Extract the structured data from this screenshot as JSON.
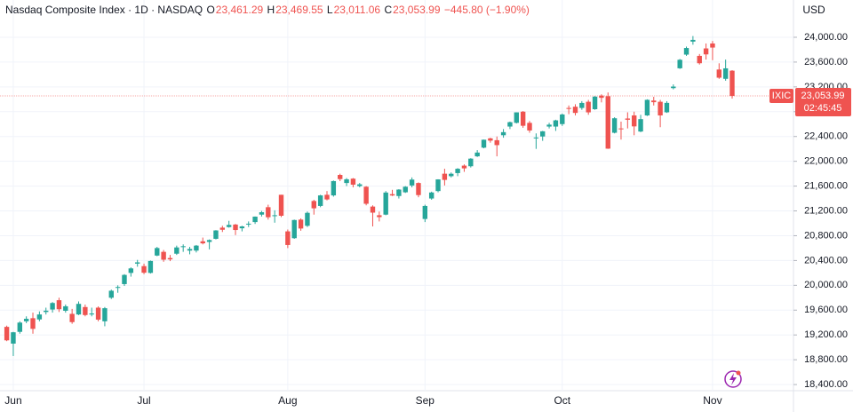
{
  "chart_data": {
    "type": "candlestick",
    "legend": {
      "symbol": "Nasdaq Composite Index · 1D · NASDAQ",
      "open_label": "O",
      "open": "23,461.29",
      "high_label": "H",
      "high": "23,469.55",
      "low_label": "L",
      "low": "23,011.06",
      "close_label": "C",
      "close": "23,053.99",
      "change": "−445.80 (−1.90%)"
    },
    "currency": "USD",
    "price_tag": {
      "symbol": "IXIC",
      "price": {
        "value": 23053.99,
        "label": "23,053.99"
      },
      "countdown": "02:45:45"
    },
    "up_color": "#26a69a",
    "down_color": "#ef5350",
    "ylim": [
      18301,
      24601
    ],
    "yticks": [
      {
        "value": 18400,
        "label": "18,400.00"
      },
      {
        "value": 18800,
        "label": "18,800.00"
      },
      {
        "value": 19200,
        "label": "19,200.00"
      },
      {
        "value": 19600,
        "label": "19,600.00"
      },
      {
        "value": 20000,
        "label": "20,000.00"
      },
      {
        "value": 20400,
        "label": "20,400.00"
      },
      {
        "value": 20800,
        "label": "20,800.00"
      },
      {
        "value": 21200,
        "label": "21,200.00"
      },
      {
        "value": 21600,
        "label": "21,600.00"
      },
      {
        "value": 22000,
        "label": "22,000.00"
      },
      {
        "value": 22400,
        "label": "22,400.00"
      },
      {
        "value": 22800,
        "label": "22,800.00"
      },
      {
        "value": 23200,
        "label": "23,200.00"
      },
      {
        "value": 23600,
        "label": "23,600.00"
      },
      {
        "value": 24000,
        "label": "24,000.00"
      }
    ],
    "grid": true,
    "categories": [
      null,
      "Jun",
      null,
      null,
      null,
      null,
      null,
      null,
      null,
      null,
      null,
      null,
      null,
      null,
      null,
      null,
      null,
      null,
      null,
      null,
      null,
      "Jul",
      null,
      null,
      null,
      null,
      null,
      null,
      null,
      null,
      null,
      null,
      null,
      null,
      null,
      null,
      null,
      null,
      null,
      null,
      null,
      null,
      null,
      "Aug",
      null,
      null,
      null,
      null,
      null,
      null,
      null,
      null,
      null,
      null,
      null,
      null,
      null,
      null,
      null,
      null,
      null,
      null,
      null,
      null,
      "Sep",
      null,
      null,
      null,
      null,
      null,
      null,
      null,
      null,
      null,
      null,
      null,
      null,
      null,
      null,
      null,
      null,
      null,
      null,
      null,
      null,
      "Oct",
      null,
      null,
      null,
      null,
      null,
      null,
      null,
      null,
      null,
      null,
      null,
      null,
      null,
      null,
      null,
      null,
      null,
      null,
      null,
      null,
      null,
      null,
      "Nov",
      null,
      null,
      null
    ],
    "candles": [
      [
        19330,
        19350,
        19100,
        19113
      ],
      [
        19060,
        19250,
        18860,
        19243
      ],
      [
        19250,
        19420,
        19220,
        19399
      ],
      [
        19420,
        19500,
        19390,
        19460
      ],
      [
        19470,
        19560,
        19220,
        19298
      ],
      [
        19450,
        19580,
        19420,
        19530
      ],
      [
        19570,
        19640,
        19530,
        19591
      ],
      [
        19610,
        19730,
        19560,
        19715
      ],
      [
        19760,
        19800,
        19570,
        19615
      ],
      [
        19590,
        19690,
        19560,
        19662
      ],
      [
        19540,
        19620,
        19380,
        19407
      ],
      [
        19530,
        19740,
        19520,
        19701
      ],
      [
        19650,
        19690,
        19500,
        19521
      ],
      [
        19530,
        19640,
        19500,
        19546
      ],
      [
        19640,
        19660,
        19420,
        19447
      ],
      [
        19420,
        19650,
        19340,
        19631
      ],
      [
        19800,
        19930,
        19780,
        19913
      ],
      [
        19960,
        20000,
        19880,
        19973
      ],
      [
        20020,
        20180,
        19990,
        20168
      ],
      [
        20200,
        20290,
        20140,
        20273
      ],
      [
        20350,
        20410,
        20300,
        20370
      ],
      [
        20310,
        20350,
        20180,
        20203
      ],
      [
        20200,
        20400,
        20190,
        20393
      ],
      [
        20480,
        20620,
        20470,
        20601
      ],
      [
        20540,
        20570,
        20380,
        20413
      ],
      [
        20440,
        20490,
        20390,
        20418
      ],
      [
        20510,
        20640,
        20490,
        20611
      ],
      [
        20620,
        20660,
        20540,
        20630
      ],
      [
        20560,
        20620,
        20500,
        20586
      ],
      [
        20560,
        20650,
        20530,
        20640
      ],
      [
        20710,
        20770,
        20660,
        20677
      ],
      [
        20700,
        20740,
        20580,
        20730
      ],
      [
        20750,
        20890,
        20740,
        20885
      ],
      [
        20930,
        20960,
        20860,
        20896
      ],
      [
        20940,
        21040,
        20930,
        20974
      ],
      [
        20980,
        20990,
        20810,
        20892
      ],
      [
        20920,
        20960,
        20870,
        20950
      ],
      [
        20990,
        21030,
        20940,
        20994
      ],
      [
        21020,
        21110,
        20990,
        21108
      ],
      [
        21140,
        21200,
        21110,
        21179
      ],
      [
        21260,
        21300,
        21060,
        21098
      ],
      [
        21130,
        21210,
        21010,
        21130
      ],
      [
        21460,
        21460,
        21100,
        21122
      ],
      [
        20870,
        20900,
        20600,
        20650
      ],
      [
        20760,
        21060,
        20750,
        21053
      ],
      [
        21060,
        21080,
        20880,
        20916
      ],
      [
        20960,
        21190,
        20940,
        21169
      ],
      [
        21360,
        21380,
        21140,
        21242
      ],
      [
        21280,
        21460,
        21260,
        21450
      ],
      [
        21460,
        21520,
        21370,
        21385
      ],
      [
        21450,
        21690,
        21430,
        21681
      ],
      [
        21780,
        21800,
        21680,
        21713
      ],
      [
        21650,
        21730,
        21600,
        21710
      ],
      [
        21720,
        21730,
        21580,
        21623
      ],
      [
        21600,
        21650,
        21580,
        21629
      ],
      [
        21590,
        21600,
        21290,
        21315
      ],
      [
        21270,
        21290,
        20950,
        21172
      ],
      [
        21130,
        21190,
        21030,
        21100
      ],
      [
        21140,
        21520,
        21130,
        21496
      ],
      [
        21470,
        21540,
        21440,
        21449
      ],
      [
        21440,
        21550,
        21400,
        21544
      ],
      [
        21500,
        21600,
        21490,
        21590
      ],
      [
        21610,
        21740,
        21580,
        21705
      ],
      [
        21650,
        21660,
        21420,
        21455
      ],
      [
        21070,
        21300,
        21020,
        21280
      ],
      [
        21400,
        21510,
        21380,
        21497
      ],
      [
        21520,
        21710,
        21500,
        21708
      ],
      [
        21800,
        21880,
        21610,
        21700
      ],
      [
        21760,
        21820,
        21740,
        21799
      ],
      [
        21810,
        21890,
        21760,
        21879
      ],
      [
        21930,
        21950,
        21830,
        21886
      ],
      [
        21920,
        22050,
        21900,
        22043
      ],
      [
        22080,
        22180,
        22070,
        22141
      ],
      [
        22220,
        22350,
        22210,
        22348
      ],
      [
        22370,
        22380,
        22300,
        22333
      ],
      [
        22340,
        22400,
        22080,
        22261
      ],
      [
        22420,
        22520,
        22380,
        22470
      ],
      [
        22560,
        22640,
        22520,
        22631
      ],
      [
        22620,
        22790,
        22610,
        22789
      ],
      [
        22800,
        22810,
        22540,
        22573
      ],
      [
        22620,
        22650,
        22460,
        22497
      ],
      [
        22380,
        22450,
        22200,
        22384
      ],
      [
        22400,
        22490,
        22330,
        22484
      ],
      [
        22560,
        22620,
        22530,
        22591
      ],
      [
        22560,
        22670,
        22490,
        22660
      ],
      [
        22600,
        22770,
        22570,
        22755
      ],
      [
        22860,
        22900,
        22760,
        22845
      ],
      [
        22880,
        22920,
        22740,
        22780
      ],
      [
        22860,
        22970,
        22830,
        22941
      ],
      [
        22960,
        22990,
        22750,
        22789
      ],
      [
        22840,
        23050,
        22830,
        23043
      ],
      [
        23060,
        23080,
        22950,
        23024
      ],
      [
        23050,
        23110,
        22200,
        22204
      ],
      [
        22460,
        22710,
        22450,
        22694
      ],
      [
        22530,
        22640,
        22350,
        22521
      ],
      [
        22690,
        22790,
        22530,
        22670
      ],
      [
        22740,
        22800,
        22420,
        22563
      ],
      [
        22480,
        22750,
        22470,
        22680
      ],
      [
        22740,
        23000,
        22730,
        22991
      ],
      [
        22980,
        23040,
        22900,
        22953
      ],
      [
        22960,
        22990,
        22550,
        22740
      ],
      [
        22790,
        22970,
        22780,
        22942
      ],
      [
        23180,
        23240,
        23160,
        23205
      ],
      [
        23500,
        23650,
        23490,
        23637
      ],
      [
        23720,
        23850,
        23700,
        23827
      ],
      [
        23930,
        24020,
        23880,
        23958
      ],
      [
        23700,
        23730,
        23560,
        23581
      ],
      [
        23820,
        23900,
        23640,
        23724
      ],
      [
        23900,
        23940,
        23630,
        23834
      ],
      [
        23480,
        23580,
        23330,
        23348
      ],
      [
        23330,
        23640,
        23300,
        23499
      ],
      [
        23461.29,
        23469.55,
        23011.06,
        23053.99
      ]
    ]
  }
}
